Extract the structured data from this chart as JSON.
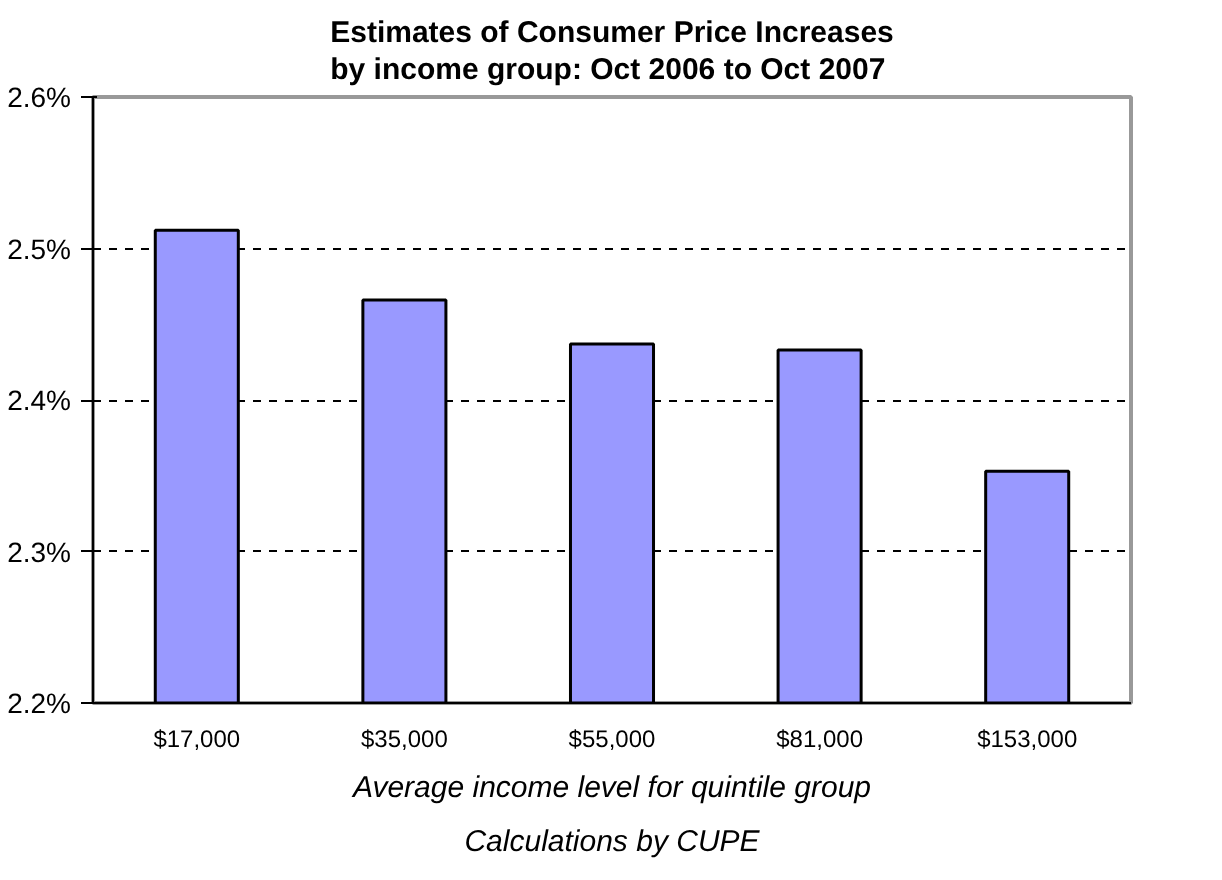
{
  "chart_data": {
    "type": "bar",
    "title": "Estimates of Consumer Price Increases\nby income group: Oct 2006 to Oct 2007",
    "xlabel": "Average income level for quintile group",
    "annotations": [
      "Calculations by CUPE"
    ],
    "categories": [
      "$17,000",
      "$35,000",
      "$55,000",
      "$81,000",
      "$153,000"
    ],
    "values": [
      2.512,
      2.466,
      2.437,
      2.433,
      2.353
    ],
    "color": "#9999ff",
    "ylim": [
      2.2,
      2.6
    ],
    "yticks": [
      {
        "value": 2.2,
        "label": "2.2%"
      },
      {
        "value": 2.3,
        "label": "2.3%"
      },
      {
        "value": 2.4,
        "label": "2.4%"
      },
      {
        "value": 2.5,
        "label": "2.5%"
      },
      {
        "value": 2.6,
        "label": "2.6%"
      }
    ],
    "grid": "y"
  }
}
